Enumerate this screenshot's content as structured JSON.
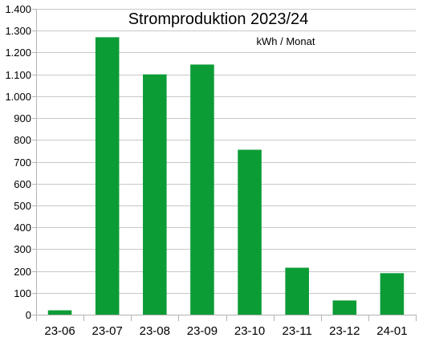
{
  "chart_data": {
    "type": "bar",
    "title": "Stromproduktion 2023/24",
    "subtitle": "kWh / Monat",
    "categories": [
      "23-06",
      "23-07",
      "23-08",
      "23-09",
      "23-10",
      "23-11",
      "23-12",
      "24-01"
    ],
    "values": [
      20,
      1270,
      1100,
      1145,
      755,
      215,
      65,
      190
    ],
    "ylim": [
      0,
      1400
    ],
    "yticks": [
      0,
      100,
      200,
      300,
      400,
      500,
      600,
      700,
      800,
      900,
      1000,
      1100,
      1200,
      1300,
      1400
    ],
    "ytick_labels": [
      "0",
      "100",
      "200",
      "300",
      "400",
      "500",
      "600",
      "700",
      "800",
      "900",
      "1.000",
      "1.100",
      "1.200",
      "1.300",
      "1.400"
    ],
    "grid": true,
    "bar_color": "#0c9c36",
    "grid_color": "#c8c8c8",
    "axis_color": "#b3b3b3"
  }
}
